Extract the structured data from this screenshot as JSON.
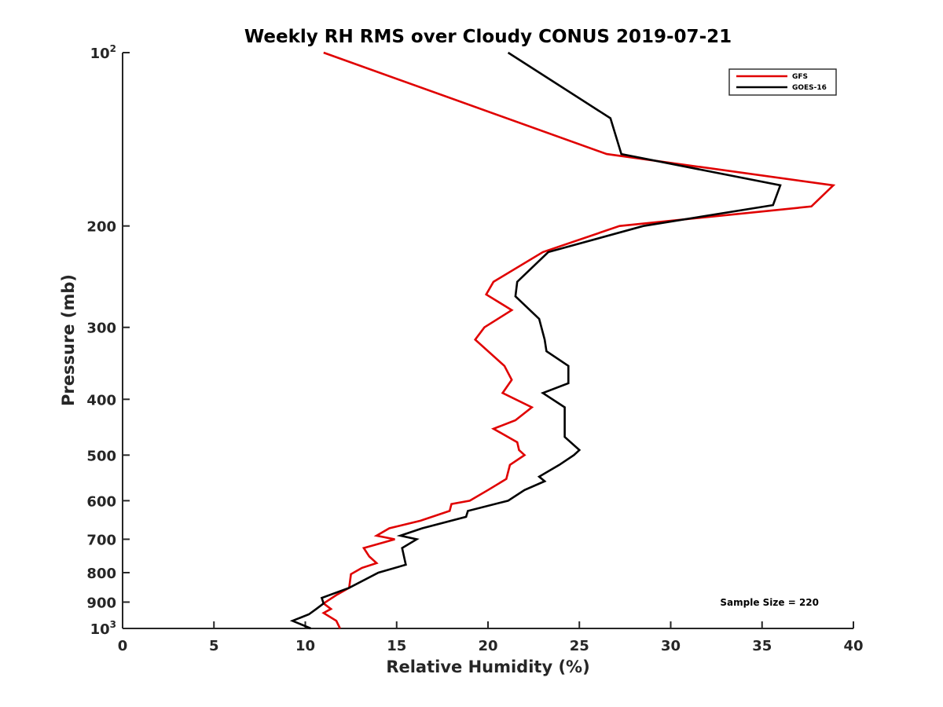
{
  "chart_data": {
    "type": "line",
    "title": "Weekly RH RMS over Cloudy CONUS 2019-07-21",
    "xlabel": "Relative Humidity (%)",
    "ylabel": "Pressure (mb)",
    "xlim": [
      0,
      40
    ],
    "ylim": [
      100,
      1000
    ],
    "y_scale": "log",
    "y_reversed": true,
    "x_ticks": [
      0,
      5,
      10,
      15,
      20,
      25,
      30,
      35,
      40
    ],
    "x_tick_labels": [
      "0",
      "5",
      "10",
      "15",
      "20",
      "25",
      "30",
      "35",
      "40"
    ],
    "y_ticks": [
      {
        "value": 100,
        "base": "10",
        "sup": "2"
      },
      {
        "value": 200,
        "base": "200",
        "sup": ""
      },
      {
        "value": 300,
        "base": "300",
        "sup": ""
      },
      {
        "value": 400,
        "base": "400",
        "sup": ""
      },
      {
        "value": 500,
        "base": "500",
        "sup": ""
      },
      {
        "value": 600,
        "base": "600",
        "sup": ""
      },
      {
        "value": 700,
        "base": "700",
        "sup": ""
      },
      {
        "value": 800,
        "base": "800",
        "sup": ""
      },
      {
        "value": 900,
        "base": "900",
        "sup": ""
      },
      {
        "value": 1000,
        "base": "10",
        "sup": "3"
      }
    ],
    "grid": false,
    "legend_position": "top-right",
    "annotation": "Sample Size = 220",
    "series": [
      {
        "name": "GFS",
        "color": "#e00000",
        "points": [
          [
            11.0,
            100
          ],
          [
            26.5,
            150
          ],
          [
            38.9,
            170
          ],
          [
            37.7,
            185
          ],
          [
            27.2,
            200
          ],
          [
            23.0,
            222
          ],
          [
            20.3,
            250
          ],
          [
            19.9,
            263
          ],
          [
            21.3,
            280
          ],
          [
            19.8,
            300
          ],
          [
            19.3,
            315
          ],
          [
            20.9,
            350
          ],
          [
            21.3,
            370
          ],
          [
            20.8,
            390
          ],
          [
            22.4,
            413
          ],
          [
            21.5,
            435
          ],
          [
            20.3,
            450
          ],
          [
            21.6,
            475
          ],
          [
            21.7,
            490
          ],
          [
            22.0,
            500
          ],
          [
            21.2,
            520
          ],
          [
            21.0,
            550
          ],
          [
            20.0,
            575
          ],
          [
            19.0,
            600
          ],
          [
            18.0,
            608
          ],
          [
            17.9,
            625
          ],
          [
            16.3,
            650
          ],
          [
            14.6,
            670
          ],
          [
            13.9,
            690
          ],
          [
            14.9,
            700
          ],
          [
            13.2,
            725
          ],
          [
            13.5,
            750
          ],
          [
            13.9,
            770
          ],
          [
            13.1,
            785
          ],
          [
            12.5,
            805
          ],
          [
            12.4,
            850
          ],
          [
            11.7,
            875
          ],
          [
            11.0,
            905
          ],
          [
            11.4,
            925
          ],
          [
            11.0,
            940
          ],
          [
            11.7,
            970
          ],
          [
            11.9,
            1000
          ]
        ]
      },
      {
        "name": "GOES-16",
        "color": "#000000",
        "points": [
          [
            21.1,
            100
          ],
          [
            26.7,
            130
          ],
          [
            27.3,
            150
          ],
          [
            36.0,
            170
          ],
          [
            35.6,
            184
          ],
          [
            28.5,
            200
          ],
          [
            23.3,
            222
          ],
          [
            21.6,
            250
          ],
          [
            21.5,
            265
          ],
          [
            22.8,
            290
          ],
          [
            23.1,
            315
          ],
          [
            23.2,
            330
          ],
          [
            24.4,
            350
          ],
          [
            24.4,
            375
          ],
          [
            23.0,
            390
          ],
          [
            24.2,
            413
          ],
          [
            24.2,
            465
          ],
          [
            25.0,
            490
          ],
          [
            24.7,
            500
          ],
          [
            23.9,
            520
          ],
          [
            22.8,
            545
          ],
          [
            23.1,
            555
          ],
          [
            22.0,
            575
          ],
          [
            21.1,
            600
          ],
          [
            18.9,
            625
          ],
          [
            18.8,
            640
          ],
          [
            16.4,
            670
          ],
          [
            15.2,
            690
          ],
          [
            16.1,
            700
          ],
          [
            15.3,
            725
          ],
          [
            15.5,
            775
          ],
          [
            14.0,
            800
          ],
          [
            12.4,
            850
          ],
          [
            10.9,
            885
          ],
          [
            11.0,
            905
          ],
          [
            10.6,
            925
          ],
          [
            10.2,
            945
          ],
          [
            9.3,
            970
          ],
          [
            10.3,
            1000
          ]
        ]
      }
    ]
  }
}
